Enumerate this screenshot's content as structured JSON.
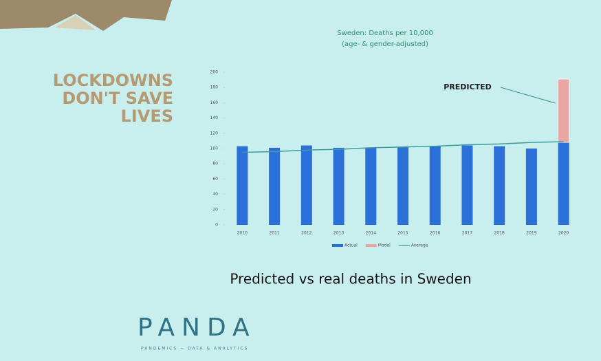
{
  "slide": {
    "headline": [
      "LOCKDOWNS",
      "DON'T SAVE",
      "LIVES"
    ],
    "caption": "Predicted vs real deaths in Sweden",
    "logo": "PANDA",
    "tagline": "PANDEMICS ~ DATA & ANALYTICS"
  },
  "chart_data": {
    "type": "bar",
    "stacked": true,
    "title": [
      "Sweden: Deaths per 10,000",
      "(age- & gender-adjusted)"
    ],
    "categories": [
      "2010",
      "2011",
      "2012",
      "2013",
      "2014",
      "2015",
      "2016",
      "2017",
      "2018",
      "2019",
      "2020"
    ],
    "series": [
      {
        "name": "Actual",
        "color": "#2b6fd8",
        "values": [
          103,
          101,
          104,
          101,
          101,
          102,
          103,
          104,
          103,
          100,
          108
        ]
      },
      {
        "name": "Model",
        "color": "#e9a4a4",
        "values": [
          null,
          null,
          null,
          null,
          null,
          null,
          null,
          null,
          null,
          null,
          83
        ]
      },
      {
        "name": "Average",
        "type": "line",
        "color": "#3f9c9c",
        "values": [
          95,
          96,
          98,
          99,
          101,
          102,
          103,
          105,
          106,
          108,
          109
        ]
      }
    ],
    "ylim": [
      0,
      200
    ],
    "yticks": [
      0,
      20,
      40,
      60,
      80,
      100,
      120,
      140,
      160,
      180,
      200
    ],
    "annotation": "PREDICTED"
  }
}
